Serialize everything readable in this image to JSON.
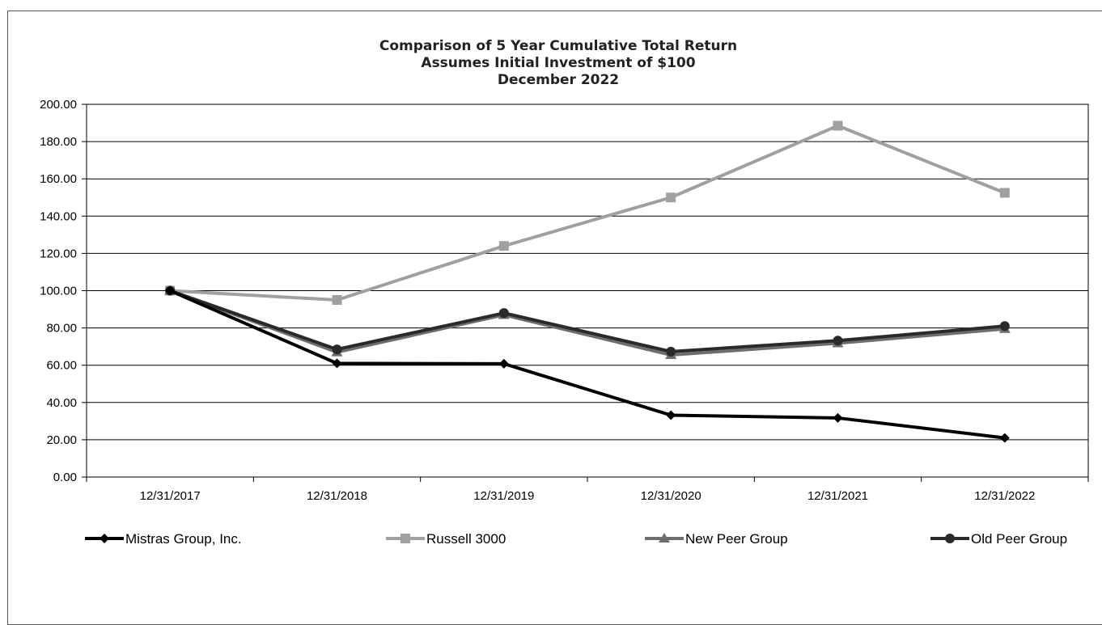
{
  "chart_data": {
    "type": "line",
    "title": [
      "Comparison of 5 Year Cumulative Total Return",
      "Assumes Initial Investment of $100",
      "December 2022"
    ],
    "categories": [
      "12/31/2017",
      "12/31/2018",
      "12/31/2019",
      "12/31/2020",
      "12/31/2021",
      "12/31/2022"
    ],
    "ylim": [
      0,
      200
    ],
    "yticks": [
      "0.00",
      "20.00",
      "40.00",
      "60.00",
      "80.00",
      "100.00",
      "120.00",
      "140.00",
      "160.00",
      "180.00",
      "200.00"
    ],
    "grid": "horizontal",
    "legend_position": "bottom",
    "series": [
      {
        "name": "Mistras Group, Inc.",
        "values": [
          100,
          61,
          60.8,
          33.2,
          31.7,
          21
        ],
        "color": "#000000",
        "marker": "diamond"
      },
      {
        "name": "Russell 3000",
        "values": [
          100,
          95,
          124,
          150,
          188.5,
          152.5
        ],
        "color": "#a0a0a0",
        "marker": "square"
      },
      {
        "name": "New Peer Group",
        "values": [
          100,
          67,
          87,
          65.5,
          71.8,
          79.5
        ],
        "color": "#6e6e6e",
        "marker": "triangle"
      },
      {
        "name": "Old Peer Group",
        "values": [
          100,
          68.5,
          88,
          67.3,
          73.2,
          81
        ],
        "color": "#2a2a2a",
        "marker": "circle"
      }
    ]
  }
}
